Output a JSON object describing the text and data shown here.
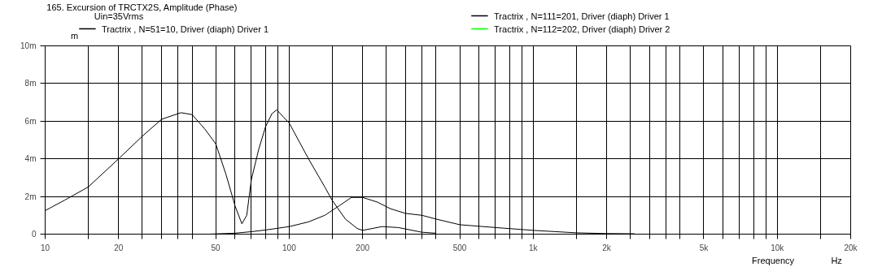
{
  "chart_data": {
    "type": "line",
    "title": "165. Excursion of TRCTX2S, Amplitude (Phase)",
    "xlabel": "Frequency",
    "ylabel": "m",
    "legend_title": "Uin=35Vrms",
    "annotations": [
      "Hz"
    ],
    "log": "x",
    "grid": true,
    "legend": "top",
    "marker": "none",
    "line_style": "solid",
    "xlim": [
      10,
      20000
    ],
    "ylim": [
      0,
      10
    ],
    "xticks": [
      10,
      {
        "value": 15,
        "label": null
      },
      20,
      {
        "value": 25,
        "label": null
      },
      {
        "value": 30,
        "label": null
      },
      {
        "value": 35,
        "label": null
      },
      {
        "value": 40,
        "label": null
      },
      50,
      {
        "value": 60,
        "label": null
      },
      {
        "value": 70,
        "label": null
      },
      {
        "value": 80,
        "label": null
      },
      {
        "value": 90,
        "label": null
      },
      100,
      {
        "value": 150,
        "label": null
      },
      200,
      {
        "value": 250,
        "label": null
      },
      {
        "value": 300,
        "label": null
      },
      {
        "value": 350,
        "label": null
      },
      {
        "value": 400,
        "label": null
      },
      500,
      {
        "value": 600,
        "label": null
      },
      {
        "value": 700,
        "label": null
      },
      {
        "value": 800,
        "label": null
      },
      {
        "value": 900,
        "label": null
      },
      {
        "value": 1000,
        "label": "1k"
      },
      {
        "value": 1500,
        "label": null
      },
      {
        "value": 2000,
        "label": "2k"
      },
      {
        "value": 2500,
        "label": null
      },
      {
        "value": 3000,
        "label": null
      },
      {
        "value": 3500,
        "label": null
      },
      {
        "value": 4000,
        "label": null
      },
      {
        "value": 5000,
        "label": "5k"
      },
      {
        "value": 6000,
        "label": null
      },
      {
        "value": 7000,
        "label": null
      },
      {
        "value": 8000,
        "label": null
      },
      {
        "value": 9000,
        "label": null
      },
      {
        "value": 10000,
        "label": "10k"
      },
      {
        "value": 15000,
        "label": null
      },
      {
        "value": 20000,
        "label": "20k"
      }
    ],
    "yticks": [
      0,
      {
        "value": 2,
        "label": "2m"
      },
      {
        "value": 4,
        "label": "4m"
      },
      {
        "value": 6,
        "label": "6m"
      },
      {
        "value": 8,
        "label": "8m"
      },
      {
        "value": 10,
        "label": "10m"
      }
    ],
    "series": [
      {
        "name": "Tractrix , N=51=10, Driver (diaph) Driver 1",
        "color": "#000000",
        "x": [
          10,
          12,
          15,
          20,
          25,
          30,
          36,
          40,
          45,
          50,
          55,
          60,
          64,
          67,
          70,
          75,
          80,
          85,
          89,
          95,
          100,
          120,
          140,
          150,
          170,
          190,
          200,
          240,
          280,
          350,
          400
        ],
        "values": [
          1.25,
          1.8,
          2.5,
          4.0,
          5.2,
          6.1,
          6.45,
          6.35,
          5.6,
          4.8,
          3.2,
          1.5,
          0.55,
          1.0,
          2.9,
          4.5,
          5.7,
          6.4,
          6.6,
          6.2,
          5.9,
          4.0,
          2.5,
          1.8,
          0.8,
          0.3,
          0.2,
          0.4,
          0.35,
          0.1,
          0.05
        ]
      },
      {
        "name": "Tractrix , N=111=201, Driver (diaph) Driver 1",
        "color": "#000000",
        "x": [
          47,
          60,
          70,
          80,
          100,
          120,
          140,
          160,
          180,
          200,
          230,
          260,
          300,
          350,
          400,
          500,
          700,
          1000,
          1500,
          2000,
          2600
        ],
        "values": [
          0,
          0.05,
          0.13,
          0.22,
          0.4,
          0.65,
          1.0,
          1.5,
          1.95,
          1.95,
          1.7,
          1.35,
          1.1,
          1.0,
          0.8,
          0.5,
          0.35,
          0.2,
          0.07,
          0.03,
          0.02
        ]
      },
      {
        "name": "Tractrix , N=112=202, Driver (diaph) Driver 2",
        "color": "#00ff00"
      }
    ]
  }
}
